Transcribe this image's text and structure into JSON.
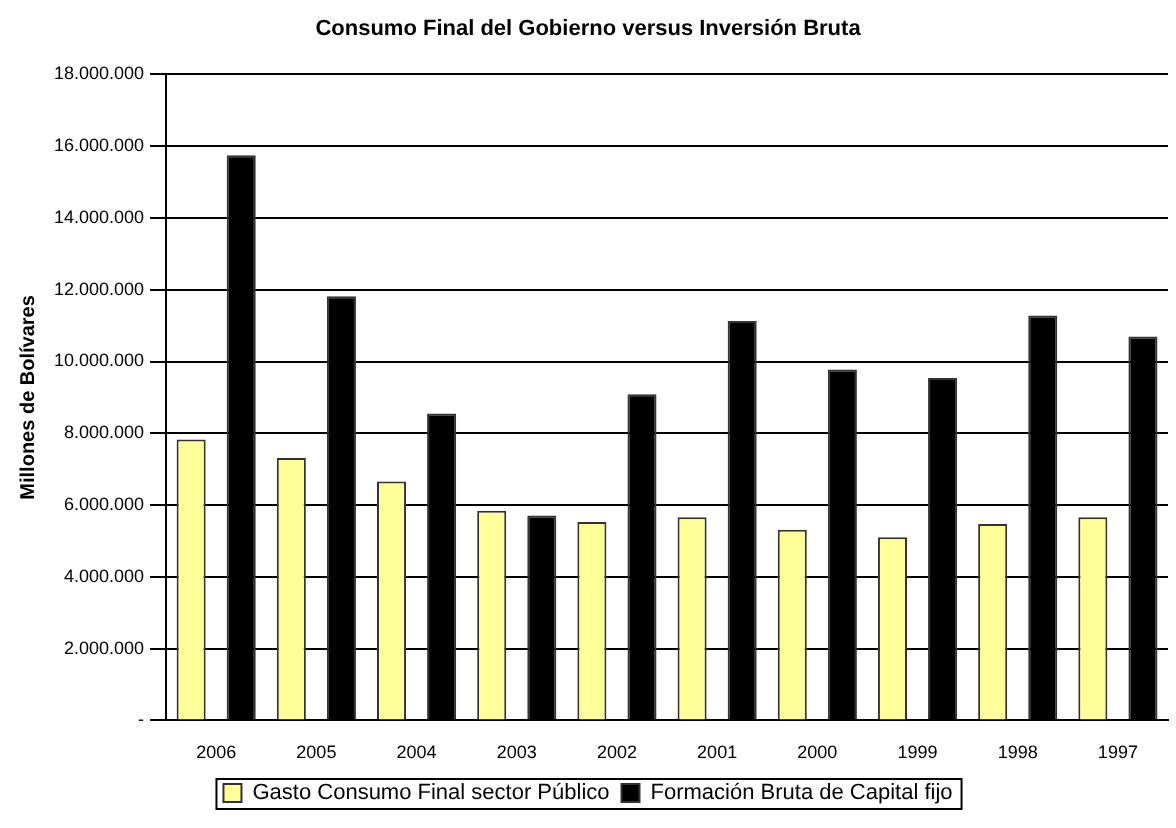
{
  "chart_data": {
    "type": "bar",
    "title": "Consumo Final del Gobierno versus Inversión Bruta",
    "ylabel": "Millones de Bolívares",
    "categories": [
      "2006",
      "2005",
      "2004",
      "2003",
      "2002",
      "2001",
      "2000",
      "1999",
      "1998",
      "1997"
    ],
    "series": [
      {
        "name": "Gasto Consumo Final sector Público",
        "color": "#ffff99",
        "values": [
          7830000,
          7310000,
          6660000,
          5840000,
          5530000,
          5660000,
          5310000,
          5100000,
          5470000,
          5660000
        ]
      },
      {
        "name": "Formación Bruta de Capital fijo",
        "color": "#000000",
        "values": [
          15750000,
          11820000,
          8550000,
          5710000,
          9090000,
          11130000,
          9780000,
          9540000,
          11280000,
          10700000
        ]
      }
    ],
    "ylim": [
      0,
      18000000
    ],
    "yticks": [
      {
        "value": 0,
        "label": "-"
      },
      {
        "value": 2000000,
        "label": "2.000.000"
      },
      {
        "value": 4000000,
        "label": "4.000.000"
      },
      {
        "value": 6000000,
        "label": "6.000.000"
      },
      {
        "value": 8000000,
        "label": "8.000.000"
      },
      {
        "value": 10000000,
        "label": "10.000.000"
      },
      {
        "value": 12000000,
        "label": "12.000.000"
      },
      {
        "value": 14000000,
        "label": "14.000.000"
      },
      {
        "value": 16000000,
        "label": "16.000.000"
      },
      {
        "value": 18000000,
        "label": "18.000.000"
      }
    ],
    "grid": "y",
    "legend": "bottom"
  }
}
